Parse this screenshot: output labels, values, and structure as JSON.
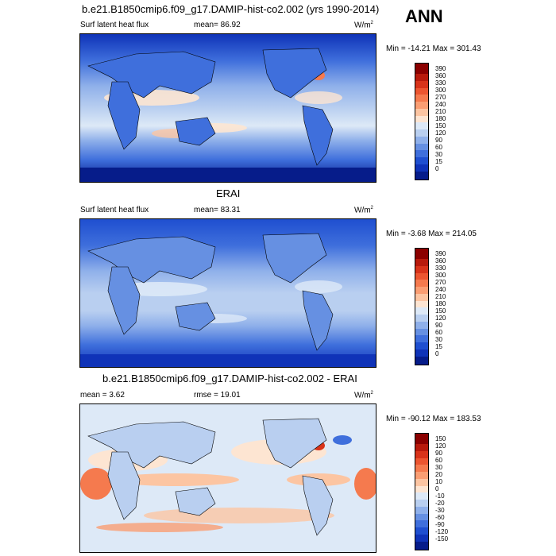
{
  "season": "ANN",
  "panels": [
    {
      "id": "test",
      "title": "b.e21.B1850cmip6.f09_g17.DAMIP-hist-co2.002 (yrs 1990-2014)",
      "left_label": "Surf latent heat flux",
      "mid_label": "mean=  86.92",
      "right_label": "W/m",
      "right_label_sup": "2",
      "minmax": "Min = -14.21 Max = 301.43",
      "colorbar": {
        "labels": [
          "390",
          "360",
          "330",
          "300",
          "270",
          "240",
          "210",
          "180",
          "150",
          "120",
          "90",
          "60",
          "30",
          "15",
          "0"
        ],
        "colors": [
          "#8b0000",
          "#b81a0c",
          "#d8331a",
          "#ec5530",
          "#f57a4e",
          "#fa9e73",
          "#fcc5a2",
          "#fde5d2",
          "#dde9f7",
          "#b9cff0",
          "#8fb0ea",
          "#6690e2",
          "#3f6fdc",
          "#1f4fd0",
          "#0f33b8",
          "#061c8a"
        ]
      }
    },
    {
      "id": "obs",
      "title": "ERAI",
      "left_label": "Surf latent heat flux",
      "mid_label": "mean=  83.31",
      "right_label": "W/m",
      "right_label_sup": "2",
      "minmax": "Min =  -3.68 Max = 214.05",
      "colorbar": {
        "labels": [
          "390",
          "360",
          "330",
          "300",
          "270",
          "240",
          "210",
          "180",
          "150",
          "120",
          "90",
          "60",
          "30",
          "15",
          "0"
        ],
        "colors": [
          "#8b0000",
          "#b81a0c",
          "#d8331a",
          "#ec5530",
          "#f57a4e",
          "#fa9e73",
          "#fcc5a2",
          "#fde5d2",
          "#dde9f7",
          "#b9cff0",
          "#8fb0ea",
          "#6690e2",
          "#3f6fdc",
          "#1f4fd0",
          "#0f33b8",
          "#061c8a"
        ]
      }
    },
    {
      "id": "diff",
      "title": "b.e21.B1850cmip6.f09_g17.DAMIP-hist-co2.002 - ERAI",
      "left_label": "mean =   3.62",
      "mid_label": "rmse =  19.01",
      "right_label": "W/m",
      "right_label_sup": "2",
      "minmax": "Min = -90.12 Max = 183.53",
      "colorbar": {
        "labels": [
          "150",
          "120",
          "90",
          "60",
          "30",
          "20",
          "10",
          "0",
          "-10",
          "-20",
          "-30",
          "-60",
          "-90",
          "-120",
          "-150"
        ],
        "colors": [
          "#8b0000",
          "#b81a0c",
          "#d8331a",
          "#ec5530",
          "#f57a4e",
          "#fa9e73",
          "#fcc5a2",
          "#fde5d2",
          "#dde9f7",
          "#b9cff0",
          "#8fb0ea",
          "#6690e2",
          "#3f6fdc",
          "#1f4fd0",
          "#0f33b8",
          "#061c8a"
        ]
      }
    }
  ]
}
